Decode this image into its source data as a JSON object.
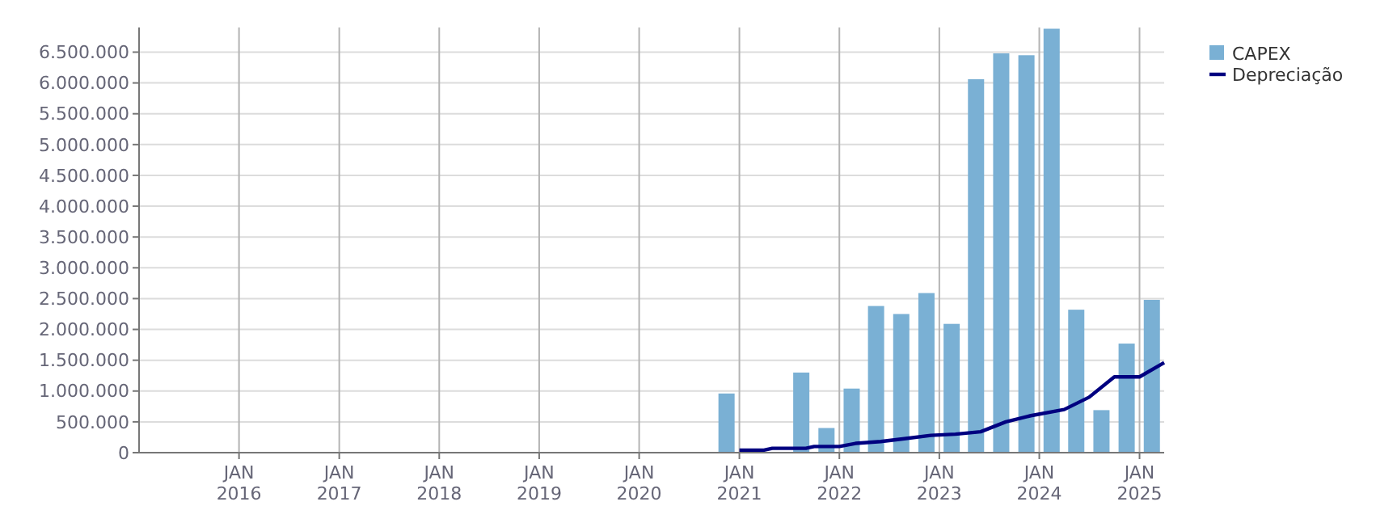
{
  "chart_data": {
    "type": "bar",
    "legend": "top right",
    "grid": true,
    "xlim": [
      "2015-01",
      "2025-04"
    ],
    "xticks": [
      {
        "value": "2016-01",
        "label": "JAN 2016"
      },
      {
        "value": "2017-01",
        "label": "JAN 2017"
      },
      {
        "value": "2018-01",
        "label": "JAN 2018"
      },
      {
        "value": "2019-01",
        "label": "JAN 2019"
      },
      {
        "value": "2020-01",
        "label": "JAN 2020"
      },
      {
        "value": "2021-01",
        "label": "JAN 2021"
      },
      {
        "value": "2022-01",
        "label": "JAN 2022"
      },
      {
        "value": "2023-01",
        "label": "JAN 2023"
      },
      {
        "value": "2024-01",
        "label": "JAN 2024"
      },
      {
        "value": "2025-01",
        "label": "JAN 2025"
      }
    ],
    "ylim": [
      0,
      6900000
    ],
    "yticks": [
      0,
      {
        "value": 500000,
        "label": "500.000"
      },
      {
        "value": 1000000,
        "label": "1.000.000"
      },
      {
        "value": 1500000,
        "label": "1.500.000"
      },
      {
        "value": 2000000,
        "label": "2.000.000"
      },
      {
        "value": 2500000,
        "label": "2.500.000"
      },
      {
        "value": 3000000,
        "label": "3.000.000"
      },
      {
        "value": 3500000,
        "label": "3.500.000"
      },
      {
        "value": 4000000,
        "label": "4.000.000"
      },
      {
        "value": 4500000,
        "label": "4.500.000"
      },
      {
        "value": 5000000,
        "label": "5.000.000"
      },
      {
        "value": 5500000,
        "label": "5.500.000"
      },
      {
        "value": 6000000,
        "label": "6.000.000"
      },
      {
        "value": 6500000,
        "label": "6.500.000"
      }
    ],
    "series": [
      {
        "name": "CAPEX",
        "color": "#7ab0d4",
        "x": [
          "2020-11-15",
          "2021-08-15",
          "2021-11-15",
          "2022-02-15",
          "2022-05-15",
          "2022-08-15",
          "2022-11-15",
          "2023-02-15",
          "2023-05-15",
          "2023-08-15",
          "2023-11-15",
          "2024-02-15",
          "2024-05-15",
          "2024-08-15",
          "2024-11-15",
          "2025-02-15"
        ],
        "values": [
          960000,
          1300000,
          400000,
          1040000,
          2380000,
          2250000,
          2590000,
          2090000,
          6060000,
          6480000,
          6450000,
          6880000,
          2320000,
          690000,
          1770000,
          2480000
        ]
      },
      {
        "name": "Depreciação",
        "type": "line",
        "color": "#000080",
        "x": [
          "2021-01",
          "2021-04",
          "2021-05",
          "2021-09",
          "2021-10",
          "2022-01",
          "2022-03",
          "2022-06",
          "2022-09",
          "2022-12",
          "2023-03",
          "2023-06",
          "2023-09",
          "2023-12",
          "2024-04",
          "2024-07",
          "2024-10",
          "2025-01",
          "2025-04"
        ],
        "values": [
          40000,
          40000,
          70000,
          70000,
          100000,
          100000,
          150000,
          180000,
          230000,
          280000,
          300000,
          340000,
          500000,
          600000,
          700000,
          900000,
          1230000,
          1230000,
          1460000
        ]
      }
    ]
  }
}
